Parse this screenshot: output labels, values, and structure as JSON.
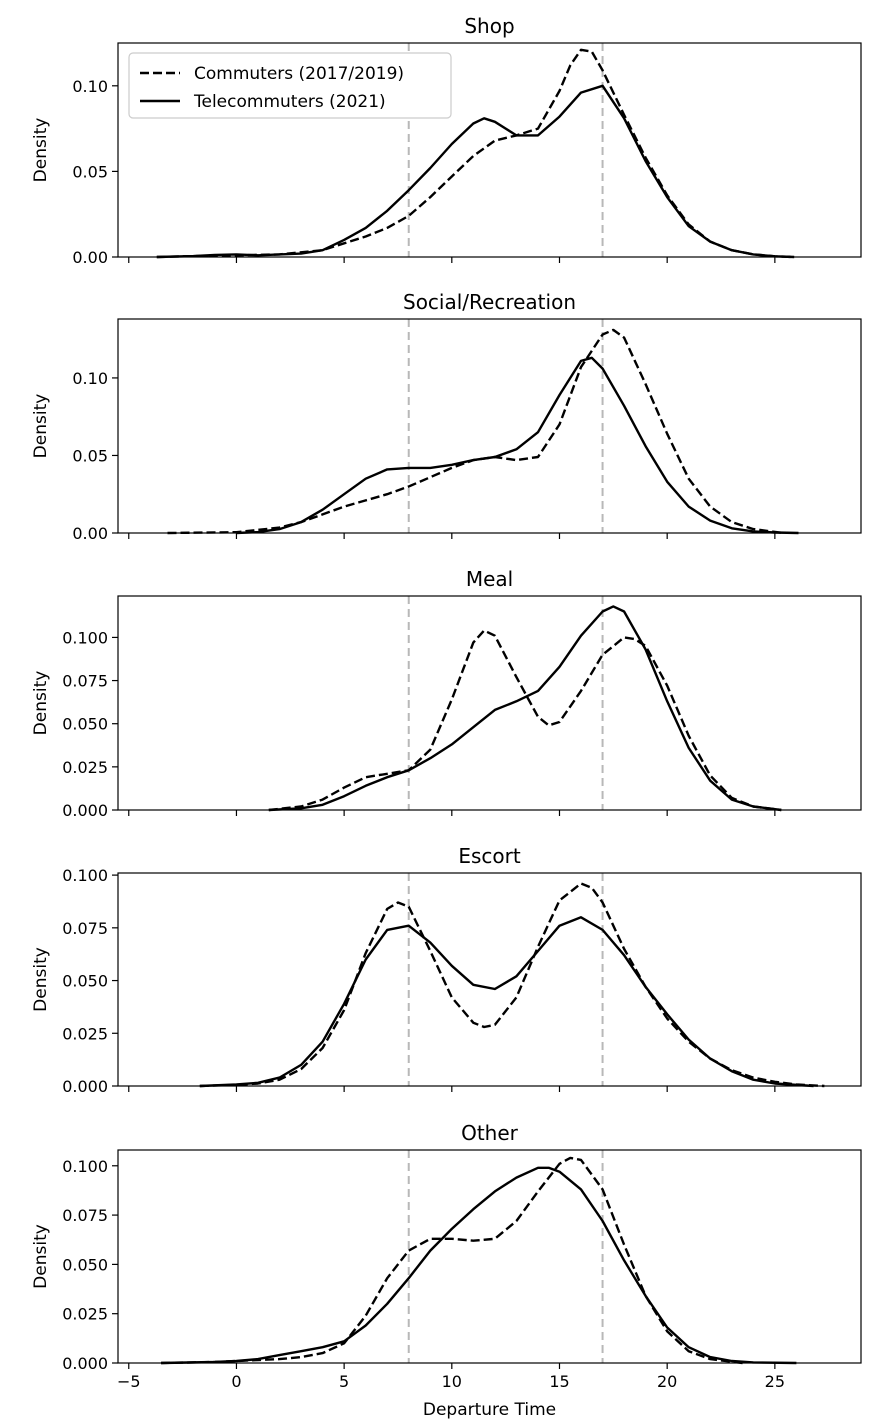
{
  "chart_data": [
    {
      "type": "line",
      "title": "Shop",
      "ylabel": "Density",
      "xlabel": "",
      "xlim": [
        -5.5,
        29
      ],
      "ylim": [
        0,
        0.125
      ],
      "xticks": [
        -5,
        0,
        5,
        10,
        15,
        20,
        25
      ],
      "yticks": [
        0.0,
        0.05,
        0.1
      ],
      "ytick_labels": [
        "0.00",
        "0.05",
        "0.10"
      ],
      "show_xtick_labels": false,
      "vlines": [
        8,
        17
      ],
      "legend": {
        "placement": "top-left",
        "entries": [
          "Commuters (2017/2019)",
          "Telecommuters (2021)"
        ]
      },
      "series": [
        {
          "name": "Commuters (2017/2019)",
          "style": "dashed",
          "x": [
            -3.7,
            -2,
            0,
            2,
            4,
            5,
            6,
            7,
            8,
            9,
            10,
            11,
            12,
            13,
            14,
            15,
            15.5,
            16,
            16.5,
            17,
            18,
            19,
            20,
            21,
            22,
            23,
            24,
            25,
            25.9
          ],
          "y": [
            0.0,
            0.0005,
            0.001,
            0.0015,
            0.004,
            0.008,
            0.012,
            0.017,
            0.024,
            0.035,
            0.047,
            0.059,
            0.068,
            0.071,
            0.075,
            0.097,
            0.112,
            0.121,
            0.12,
            0.109,
            0.083,
            0.058,
            0.036,
            0.019,
            0.009,
            0.004,
            0.0015,
            0.0004,
            0.0
          ]
        },
        {
          "name": "Telecommuters (2021)",
          "style": "solid",
          "x": [
            -3.7,
            -2,
            -1,
            0,
            1,
            2,
            3,
            4,
            5,
            6,
            7,
            8,
            9,
            10,
            11,
            11.5,
            12,
            13,
            14,
            15,
            16,
            17,
            18,
            19,
            20,
            21,
            22,
            23,
            24,
            25,
            25.9
          ],
          "y": [
            0.0,
            0.0005,
            0.0012,
            0.0015,
            0.001,
            0.0015,
            0.002,
            0.004,
            0.01,
            0.017,
            0.027,
            0.039,
            0.052,
            0.066,
            0.078,
            0.081,
            0.079,
            0.071,
            0.071,
            0.082,
            0.096,
            0.1,
            0.081,
            0.056,
            0.035,
            0.018,
            0.009,
            0.004,
            0.0015,
            0.0004,
            0.0
          ]
        }
      ]
    },
    {
      "type": "line",
      "title": "Social/Recreation",
      "ylabel": "Density",
      "xlabel": "",
      "xlim": [
        -5.5,
        29
      ],
      "ylim": [
        0,
        0.138
      ],
      "xticks": [
        -5,
        0,
        5,
        10,
        15,
        20,
        25
      ],
      "yticks": [
        0.0,
        0.05,
        0.1
      ],
      "ytick_labels": [
        "0.00",
        "0.05",
        "0.10"
      ],
      "show_xtick_labels": false,
      "vlines": [
        8,
        17
      ],
      "series": [
        {
          "name": "Commuters (2017/2019)",
          "style": "dashed",
          "x": [
            -3.2,
            0,
            2,
            3,
            4,
            5,
            6,
            7,
            8,
            9,
            10,
            11,
            12,
            13,
            14,
            15,
            16,
            17,
            17.5,
            18,
            19,
            20,
            21,
            22,
            23,
            24,
            25.4
          ],
          "y": [
            0.0,
            0.0005,
            0.0035,
            0.007,
            0.012,
            0.017,
            0.021,
            0.025,
            0.03,
            0.036,
            0.042,
            0.047,
            0.049,
            0.047,
            0.049,
            0.07,
            0.107,
            0.128,
            0.131,
            0.126,
            0.096,
            0.064,
            0.035,
            0.017,
            0.007,
            0.0025,
            0.0
          ]
        },
        {
          "name": "Telecommuters (2021)",
          "style": "solid",
          "x": [
            0,
            1,
            2,
            3,
            4,
            5,
            6,
            7,
            8,
            9,
            10,
            11,
            12,
            13,
            14,
            15,
            16,
            16.5,
            17,
            18,
            19,
            20,
            21,
            22,
            23,
            24,
            25,
            26.1
          ],
          "y": [
            0.0,
            0.0006,
            0.0025,
            0.007,
            0.015,
            0.025,
            0.035,
            0.041,
            0.042,
            0.042,
            0.044,
            0.047,
            0.049,
            0.054,
            0.065,
            0.089,
            0.111,
            0.113,
            0.106,
            0.082,
            0.056,
            0.033,
            0.017,
            0.008,
            0.003,
            0.001,
            0.0003,
            0.0
          ]
        }
      ]
    },
    {
      "type": "line",
      "title": "Meal",
      "ylabel": "Density",
      "xlabel": "",
      "xlim": [
        -5.5,
        29
      ],
      "ylim": [
        0,
        0.124
      ],
      "xticks": [
        -5,
        0,
        5,
        10,
        15,
        20,
        25
      ],
      "yticks": [
        0.0,
        0.025,
        0.05,
        0.075,
        0.1
      ],
      "ytick_labels": [
        "0.000",
        "0.025",
        "0.050",
        "0.075",
        "0.100"
      ],
      "show_xtick_labels": false,
      "vlines": [
        8,
        17
      ],
      "series": [
        {
          "name": "Commuters (2017/2019)",
          "style": "dashed",
          "x": [
            1.5,
            3,
            4,
            5,
            6,
            7,
            8,
            9,
            10,
            11,
            11.5,
            12,
            13,
            14,
            14.5,
            15,
            16,
            17,
            18,
            18.5,
            19,
            20,
            21,
            22,
            23,
            24,
            25.3
          ],
          "y": [
            0.0,
            0.002,
            0.006,
            0.013,
            0.019,
            0.021,
            0.023,
            0.035,
            0.064,
            0.097,
            0.104,
            0.101,
            0.077,
            0.054,
            0.049,
            0.051,
            0.069,
            0.09,
            0.1,
            0.099,
            0.095,
            0.072,
            0.043,
            0.02,
            0.007,
            0.002,
            0.0
          ]
        },
        {
          "name": "Telecommuters (2021)",
          "style": "solid",
          "x": [
            1.5,
            3,
            4,
            5,
            6,
            7,
            8,
            9,
            10,
            11,
            12,
            13,
            14,
            15,
            16,
            17,
            17.5,
            18,
            19,
            20,
            21,
            22,
            23,
            24,
            25.3
          ],
          "y": [
            0.0,
            0.001,
            0.003,
            0.008,
            0.014,
            0.019,
            0.023,
            0.03,
            0.038,
            0.048,
            0.058,
            0.063,
            0.069,
            0.083,
            0.101,
            0.115,
            0.118,
            0.115,
            0.093,
            0.063,
            0.036,
            0.017,
            0.006,
            0.002,
            0.0
          ]
        }
      ]
    },
    {
      "type": "line",
      "title": "Escort",
      "ylabel": "Density",
      "xlabel": "",
      "xlim": [
        -5.5,
        29
      ],
      "ylim": [
        0,
        0.101
      ],
      "xticks": [
        -5,
        0,
        5,
        10,
        15,
        20,
        25
      ],
      "yticks": [
        0.0,
        0.025,
        0.05,
        0.075,
        0.1
      ],
      "ytick_labels": [
        "0.000",
        "0.025",
        "0.050",
        "0.075",
        "0.100"
      ],
      "show_xtick_labels": false,
      "vlines": [
        8,
        17
      ],
      "series": [
        {
          "name": "Commuters (2017/2019)",
          "style": "dashed",
          "x": [
            -1.7,
            0,
            1,
            2,
            3,
            4,
            5,
            6,
            7,
            7.5,
            8,
            9,
            10,
            11,
            11.5,
            12,
            13,
            14,
            15,
            16,
            16.5,
            17,
            18,
            19,
            20,
            21,
            22,
            23,
            24,
            25,
            26,
            27.3
          ],
          "y": [
            0.0,
            0.0005,
            0.0012,
            0.003,
            0.008,
            0.018,
            0.036,
            0.063,
            0.084,
            0.087,
            0.085,
            0.064,
            0.042,
            0.03,
            0.028,
            0.029,
            0.042,
            0.066,
            0.088,
            0.096,
            0.094,
            0.087,
            0.065,
            0.047,
            0.032,
            0.021,
            0.013,
            0.0075,
            0.004,
            0.002,
            0.0007,
            0.0
          ]
        },
        {
          "name": "Telecommuters (2021)",
          "style": "solid",
          "x": [
            -1.7,
            0,
            1,
            2,
            3,
            4,
            5,
            6,
            7,
            8,
            9,
            10,
            11,
            12,
            13,
            14,
            15,
            16,
            17,
            18,
            19,
            20,
            21,
            22,
            23,
            24,
            25,
            26.8
          ],
          "y": [
            0.0,
            0.0007,
            0.0015,
            0.004,
            0.01,
            0.021,
            0.039,
            0.06,
            0.074,
            0.076,
            0.068,
            0.057,
            0.048,
            0.046,
            0.052,
            0.064,
            0.076,
            0.08,
            0.074,
            0.062,
            0.047,
            0.034,
            0.022,
            0.013,
            0.007,
            0.003,
            0.0012,
            0.0
          ]
        }
      ]
    },
    {
      "type": "line",
      "title": "Other",
      "ylabel": "Density",
      "xlabel": "Departure Time",
      "xlim": [
        -5.5,
        29
      ],
      "ylim": [
        0,
        0.108
      ],
      "xticks": [
        -5,
        0,
        5,
        10,
        15,
        20,
        25
      ],
      "xtick_labels": [
        "−5",
        "0",
        "5",
        "10",
        "15",
        "20",
        "25"
      ],
      "yticks": [
        0.0,
        0.025,
        0.05,
        0.075,
        0.1
      ],
      "ytick_labels": [
        "0.000",
        "0.025",
        "0.050",
        "0.075",
        "0.100"
      ],
      "show_xtick_labels": true,
      "vlines": [
        8,
        17
      ],
      "series": [
        {
          "name": "Commuters (2017/2019)",
          "style": "dashed",
          "x": [
            -3.5,
            -1,
            0,
            1,
            2,
            3,
            4,
            5,
            6,
            7,
            8,
            9,
            10,
            11,
            12,
            13,
            14,
            15,
            15.5,
            16,
            17,
            18,
            19,
            20,
            21,
            22,
            23.5
          ],
          "y": [
            0.0,
            0.0005,
            0.001,
            0.0015,
            0.002,
            0.003,
            0.005,
            0.01,
            0.024,
            0.043,
            0.057,
            0.063,
            0.063,
            0.062,
            0.063,
            0.072,
            0.087,
            0.101,
            0.104,
            0.103,
            0.088,
            0.06,
            0.034,
            0.016,
            0.006,
            0.002,
            0.0
          ]
        },
        {
          "name": "Telecommuters (2021)",
          "style": "solid",
          "x": [
            -3.5,
            -1,
            0,
            1,
            2,
            3,
            4,
            5,
            6,
            7,
            8,
            9,
            10,
            11,
            12,
            13,
            14,
            14.5,
            15,
            16,
            17,
            18,
            19,
            20,
            21,
            22,
            23,
            24,
            26
          ],
          "y": [
            0.0,
            0.0005,
            0.001,
            0.002,
            0.004,
            0.006,
            0.008,
            0.011,
            0.019,
            0.03,
            0.043,
            0.057,
            0.068,
            0.078,
            0.087,
            0.094,
            0.099,
            0.099,
            0.097,
            0.088,
            0.072,
            0.052,
            0.034,
            0.018,
            0.008,
            0.003,
            0.001,
            0.0003,
            0.0
          ]
        }
      ]
    }
  ]
}
